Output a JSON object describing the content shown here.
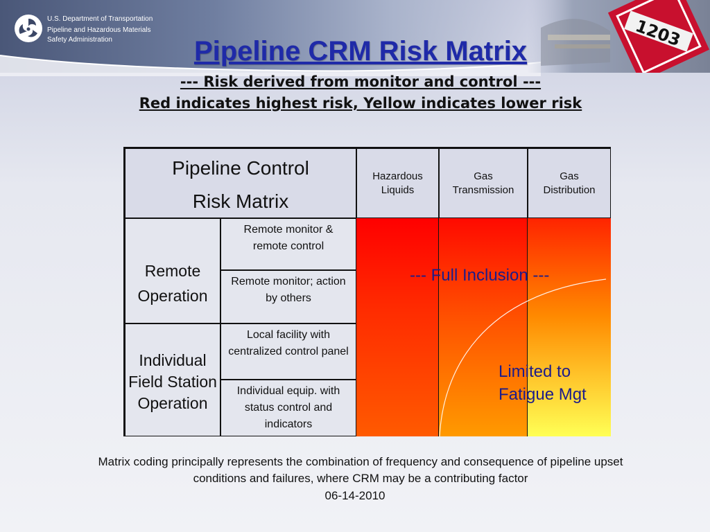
{
  "agency": {
    "line1": "U.S. Department of Transportation",
    "line2": "Pipeline and Hazardous Materials",
    "line3": "Safety Administration"
  },
  "photo": {
    "placard_text": "1203"
  },
  "title": "Pipeline CRM Risk Matrix",
  "subtitle1": "--- Risk derived from monitor and control ---",
  "subtitle2": "Red indicates highest risk, Yellow indicates lower risk",
  "matrix": {
    "header_line1": "Pipeline Control",
    "header_line2": "Risk Matrix",
    "columns": {
      "hazardous_liquids": "Hazardous Liquids",
      "gas_transmission": "Gas Transmission",
      "gas_distribution": "Gas Distribution"
    },
    "groups": {
      "remote_line1": "Remote",
      "remote_line2": "Operation",
      "field": "Individual Field Station Operation"
    },
    "rows": {
      "r1": "Remote monitor & remote control",
      "r2": "Remote monitor; action by others",
      "r3": "Local facility with centralized control panel",
      "r4": "Individual equip. with status control and indicators"
    },
    "full_inclusion": "--- Full Inclusion ---",
    "limited_line1": "Limited to",
    "limited_line2": "Fatigue Mgt",
    "colors": {
      "high": "#ff0000",
      "low": "#ffff55"
    }
  },
  "caption": "Matrix coding principally represents the combination of frequency and consequence of pipeline upset conditions and failures, where CRM may be a contributing factor",
  "date": "06-14-2010"
}
